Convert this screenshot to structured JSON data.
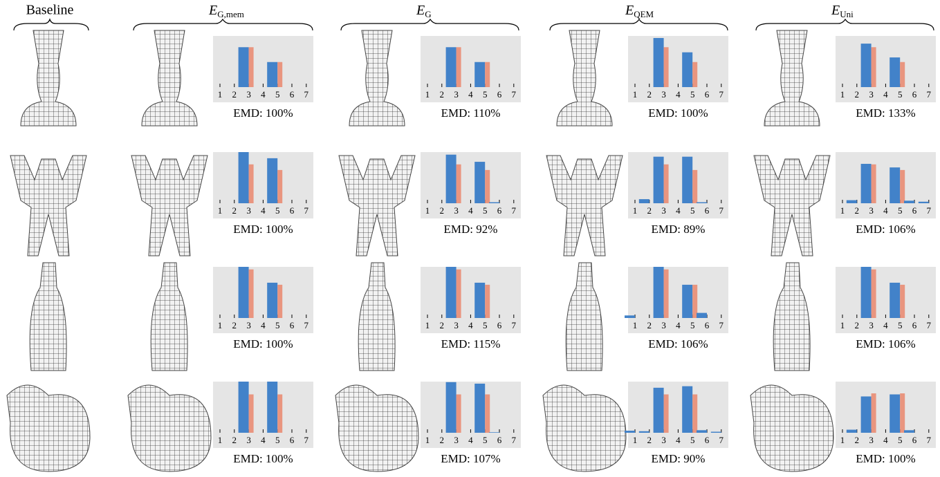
{
  "headers": [
    "Baseline",
    {
      "symbol": "E",
      "subscript": "G,mem"
    },
    {
      "symbol": "E",
      "subscript": "G"
    },
    {
      "symbol": "E",
      "subscript": "QEM"
    },
    {
      "symbol": "E",
      "subscript": "Uni"
    }
  ],
  "chart_data": [
    {
      "type": "bar",
      "categories": [
        "1",
        "2",
        "3",
        "4",
        "5",
        "6",
        "7"
      ],
      "ylim": [
        0,
        1
      ],
      "xlabel": "EMD: 100%",
      "series": [
        {
          "color": "#4282c9",
          "values": [
            0,
            0,
            0.78,
            0,
            0.49,
            0,
            0
          ]
        },
        {
          "color": "#e9957f",
          "values": [
            0,
            0,
            0.78,
            0,
            0.49,
            0,
            0
          ]
        }
      ]
    },
    {
      "type": "bar",
      "categories": [
        "1",
        "2",
        "3",
        "4",
        "5",
        "6",
        "7"
      ],
      "ylim": [
        0,
        1
      ],
      "xlabel": "EMD: 110%",
      "series": [
        {
          "color": "#4282c9",
          "values": [
            0,
            0,
            0.78,
            0,
            0.49,
            0,
            0
          ]
        },
        {
          "color": "#e9957f",
          "values": [
            0,
            0,
            0.78,
            0,
            0.49,
            0,
            0
          ]
        }
      ]
    },
    {
      "type": "bar",
      "categories": [
        "1",
        "2",
        "3",
        "4",
        "5",
        "6",
        "7"
      ],
      "ylim": [
        0,
        1
      ],
      "xlabel": "EMD: 100%",
      "series": [
        {
          "color": "#4282c9",
          "values": [
            0,
            0,
            0.96,
            0,
            0.68,
            0,
            0
          ]
        },
        {
          "color": "#e9957f",
          "values": [
            0,
            0,
            0.78,
            0,
            0.49,
            0,
            0
          ]
        }
      ]
    },
    {
      "type": "bar",
      "categories": [
        "1",
        "2",
        "3",
        "4",
        "5",
        "6",
        "7"
      ],
      "ylim": [
        0,
        1
      ],
      "xlabel": "EMD: 133%",
      "series": [
        {
          "color": "#4282c9",
          "values": [
            0,
            0,
            0.85,
            0,
            0.58,
            0,
            0
          ]
        },
        {
          "color": "#e9957f",
          "values": [
            0,
            0,
            0.78,
            0,
            0.49,
            0,
            0
          ]
        }
      ]
    },
    {
      "type": "bar",
      "categories": [
        "1",
        "2",
        "3",
        "4",
        "5",
        "6",
        "7"
      ],
      "ylim": [
        0,
        1
      ],
      "xlabel": "EMD: 100%",
      "series": [
        {
          "color": "#4282c9",
          "values": [
            0,
            0,
            1.0,
            0,
            0.88,
            0,
            0
          ]
        },
        {
          "color": "#e9957f",
          "values": [
            0,
            0,
            0.76,
            0,
            0.65,
            0,
            0
          ]
        }
      ]
    },
    {
      "type": "bar",
      "categories": [
        "1",
        "2",
        "3",
        "4",
        "5",
        "6",
        "7"
      ],
      "ylim": [
        0,
        1
      ],
      "xlabel": "EMD: 92%",
      "series": [
        {
          "color": "#4282c9",
          "values": [
            0,
            0,
            0.95,
            0,
            0.81,
            0.02,
            0
          ]
        },
        {
          "color": "#e9957f",
          "values": [
            0,
            0,
            0.76,
            0,
            0.65,
            0,
            0
          ]
        }
      ]
    },
    {
      "type": "bar",
      "categories": [
        "1",
        "2",
        "3",
        "4",
        "5",
        "6",
        "7"
      ],
      "ylim": [
        0,
        1
      ],
      "xlabel": "EMD: 89%",
      "series": [
        {
          "color": "#4282c9",
          "values": [
            0,
            0.08,
            0.91,
            0,
            0.91,
            0.02,
            0
          ]
        },
        {
          "color": "#e9957f",
          "values": [
            0,
            0,
            0.76,
            0,
            0.65,
            0,
            0
          ]
        }
      ]
    },
    {
      "type": "bar",
      "categories": [
        "1",
        "2",
        "3",
        "4",
        "5",
        "6",
        "7"
      ],
      "ylim": [
        0,
        1
      ],
      "xlabel": "EMD: 106%",
      "series": [
        {
          "color": "#4282c9",
          "values": [
            0,
            0.06,
            0.77,
            0,
            0.7,
            0.05,
            0.03
          ]
        },
        {
          "color": "#e9957f",
          "values": [
            0,
            0,
            0.76,
            0,
            0.65,
            0,
            0
          ]
        }
      ]
    },
    {
      "type": "bar",
      "categories": [
        "1",
        "2",
        "3",
        "4",
        "5",
        "6",
        "7"
      ],
      "ylim": [
        0,
        1
      ],
      "xlabel": "EMD: 100%",
      "series": [
        {
          "color": "#4282c9",
          "values": [
            0,
            0,
            1.0,
            0,
            0.69,
            0,
            0
          ]
        },
        {
          "color": "#e9957f",
          "values": [
            0,
            0,
            0.95,
            0,
            0.65,
            0,
            0
          ]
        }
      ]
    },
    {
      "type": "bar",
      "categories": [
        "1",
        "2",
        "3",
        "4",
        "5",
        "6",
        "7"
      ],
      "ylim": [
        0,
        1
      ],
      "xlabel": "EMD: 115%",
      "series": [
        {
          "color": "#4282c9",
          "values": [
            0,
            0,
            1.0,
            0,
            0.69,
            0,
            0
          ]
        },
        {
          "color": "#e9957f",
          "values": [
            0,
            0,
            0.95,
            0,
            0.65,
            0,
            0
          ]
        }
      ]
    },
    {
      "type": "bar",
      "categories": [
        "1",
        "2",
        "3",
        "4",
        "5",
        "6",
        "7"
      ],
      "ylim": [
        0,
        1
      ],
      "xlabel": "EMD: 106%",
      "series": [
        {
          "color": "#4282c9",
          "values": [
            0.05,
            0,
            1.0,
            0,
            0.65,
            0.1,
            0
          ]
        },
        {
          "color": "#e9957f",
          "values": [
            0,
            0,
            0.95,
            0,
            0.65,
            0,
            0
          ]
        }
      ]
    },
    {
      "type": "bar",
      "categories": [
        "1",
        "2",
        "3",
        "4",
        "5",
        "6",
        "7"
      ],
      "ylim": [
        0,
        1
      ],
      "xlabel": "EMD: 106%",
      "series": [
        {
          "color": "#4282c9",
          "values": [
            0,
            0,
            1.0,
            0,
            0.69,
            0,
            0
          ]
        },
        {
          "color": "#e9957f",
          "values": [
            0,
            0,
            0.95,
            0,
            0.65,
            0,
            0
          ]
        }
      ]
    },
    {
      "type": "bar",
      "categories": [
        "1",
        "2",
        "3",
        "4",
        "5",
        "6",
        "7"
      ],
      "ylim": [
        0,
        1
      ],
      "xlabel": "EMD: 100%",
      "series": [
        {
          "color": "#4282c9",
          "values": [
            0,
            0,
            1.0,
            0,
            1.0,
            0,
            0
          ]
        },
        {
          "color": "#e9957f",
          "values": [
            0,
            0,
            0.75,
            0,
            0.75,
            0,
            0
          ]
        }
      ]
    },
    {
      "type": "bar",
      "categories": [
        "1",
        "2",
        "3",
        "4",
        "5",
        "6",
        "7"
      ],
      "ylim": [
        0,
        1
      ],
      "xlabel": "EMD: 107%",
      "series": [
        {
          "color": "#4282c9",
          "values": [
            0,
            0,
            0.99,
            0,
            0.96,
            0.01,
            0
          ]
        },
        {
          "color": "#e9957f",
          "values": [
            0,
            0,
            0.75,
            0,
            0.75,
            0,
            0
          ]
        }
      ]
    },
    {
      "type": "bar",
      "categories": [
        "1",
        "2",
        "3",
        "4",
        "5",
        "6",
        "7"
      ],
      "ylim": [
        0,
        1
      ],
      "xlabel": "EMD: 90%",
      "series": [
        {
          "color": "#4282c9",
          "values": [
            0.04,
            0.03,
            0.88,
            0,
            0.91,
            0.05,
            0.02
          ]
        },
        {
          "color": "#e9957f",
          "values": [
            0,
            0,
            0.75,
            0,
            0.75,
            0,
            0
          ]
        }
      ]
    },
    {
      "type": "bar",
      "categories": [
        "1",
        "2",
        "3",
        "4",
        "5",
        "6",
        "7"
      ],
      "ylim": [
        0,
        1
      ],
      "xlabel": "EMD: 100%",
      "series": [
        {
          "color": "#4282c9",
          "values": [
            0,
            0.06,
            0.71,
            0,
            0.75,
            0.05,
            0
          ]
        },
        {
          "color": "#e9957f",
          "values": [
            0,
            0,
            0.77,
            0,
            0.77,
            0,
            0
          ]
        }
      ]
    }
  ]
}
